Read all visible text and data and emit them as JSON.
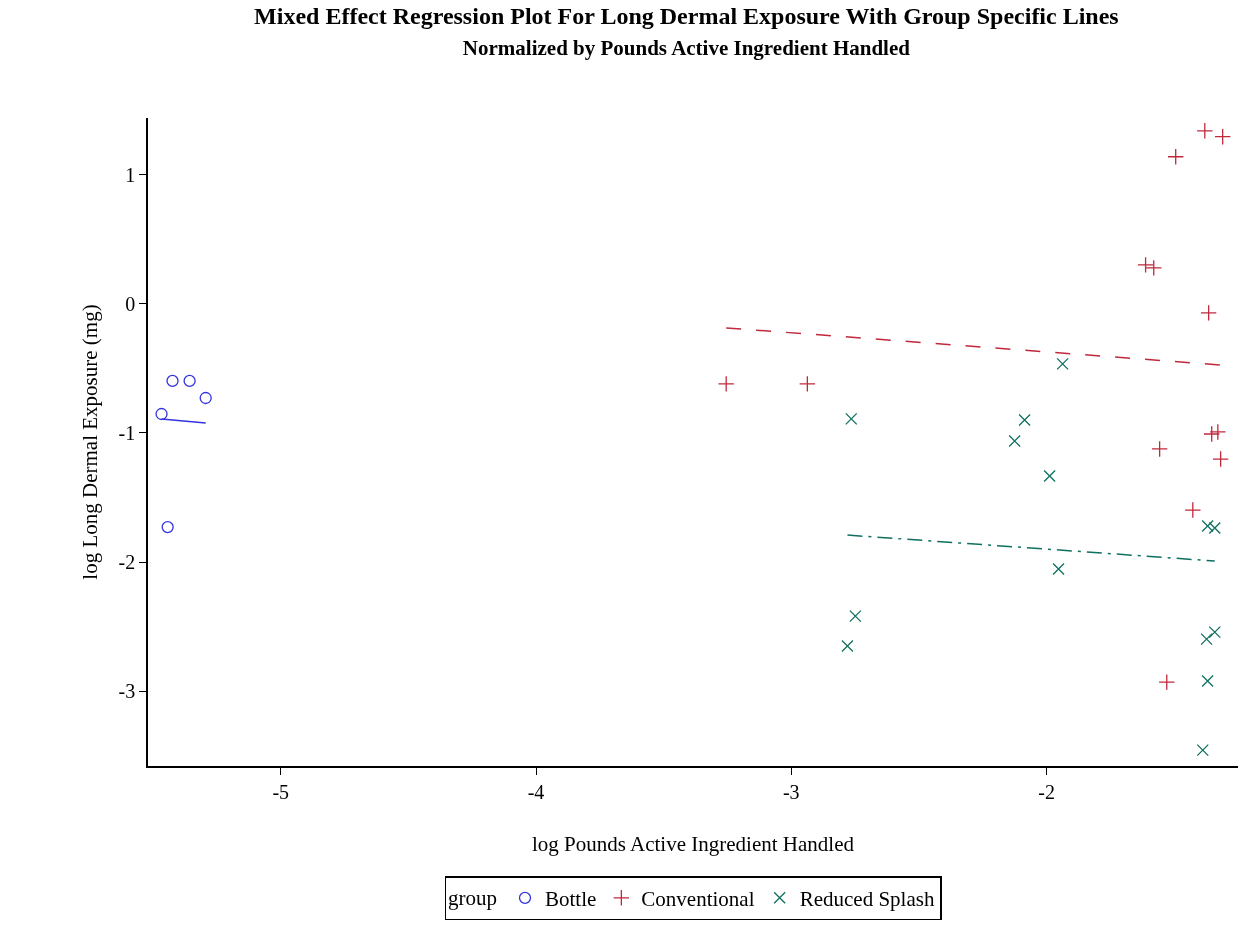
{
  "chart_data": {
    "type": "scatter",
    "title": "Mixed Effect Regression Plot For Long Dermal Exposure With Group Specific Lines",
    "subtitle": "Normalized by Pounds Active Ingredient Handled",
    "xlabel": "log Pounds Active Ingredient Handled",
    "ylabel": "log Long Dermal Exposure (mg)",
    "legend_title": "group",
    "legend": "bottom",
    "xlim": [
      -5.52,
      -1.25
    ],
    "ylim": [
      -3.58,
      1.44
    ],
    "xticks": [
      -5,
      -4,
      -3,
      -2
    ],
    "yticks": [
      -3,
      -2,
      -1,
      0,
      1
    ],
    "series": [
      {
        "name": "Bottle",
        "marker": "circle",
        "color": "#3333e0",
        "x": [
          -5.467,
          -5.424,
          -5.357,
          -5.294,
          -5.443
        ],
        "values": [
          -0.853,
          -0.597,
          -0.597,
          -0.729,
          -1.729
        ]
      },
      {
        "name": "Conventional",
        "marker": "plus",
        "color": "#c0283c",
        "x": [
          -3.255,
          -2.937,
          -1.612,
          -1.58,
          -1.494,
          -1.38,
          -1.31,
          -1.365,
          -1.557,
          -1.353,
          -1.329,
          -1.318,
          -1.427,
          -1.529
        ],
        "values": [
          -0.62,
          -0.62,
          0.302,
          0.279,
          1.14,
          1.341,
          1.295,
          -0.07,
          -1.124,
          -1.008,
          -0.992,
          -1.202,
          -1.597,
          -2.93
        ]
      },
      {
        "name": "Reduced Splash",
        "marker": "x",
        "color": "#0e7060",
        "x": [
          -2.765,
          -1.937,
          -2.086,
          -2.125,
          -1.988,
          -1.953,
          -2.749,
          -2.78,
          -1.369,
          -1.341,
          -1.373,
          -1.341,
          -1.369,
          -1.388
        ],
        "values": [
          -0.891,
          -0.465,
          -0.899,
          -1.062,
          -1.333,
          -2.054,
          -2.419,
          -2.651,
          -1.721,
          -1.736,
          -2.597,
          -2.543,
          -2.922,
          -3.457
        ]
      },
      {
        "type": "line",
        "line_style": "solid",
        "color": "#3333e0",
        "x": [
          -5.467,
          -5.294
        ],
        "values": [
          -0.891,
          -0.922
        ]
      },
      {
        "type": "line",
        "line_style": "dashed",
        "color": "#c0283c",
        "x": [
          -3.255,
          -1.318
        ],
        "values": [
          -0.186,
          -0.473
        ]
      },
      {
        "type": "line",
        "line_style": "dashdot",
        "color": "#0e7060",
        "x": [
          -2.78,
          -1.341
        ],
        "values": [
          -1.791,
          -1.992
        ]
      }
    ]
  }
}
